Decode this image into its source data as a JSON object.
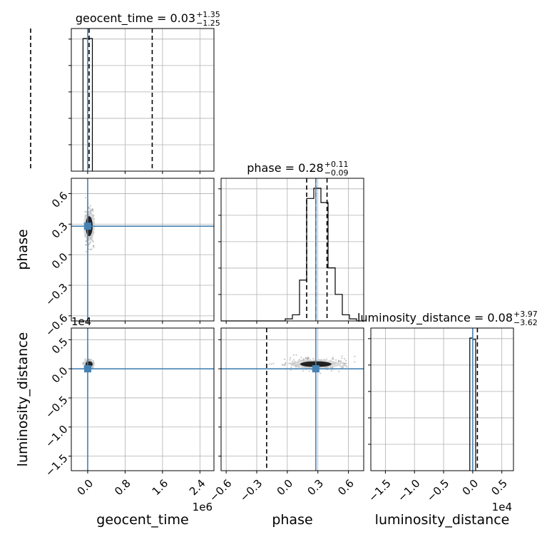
{
  "chart_data": {
    "type": "corner",
    "parameters": [
      {
        "name": "geocent_time",
        "axis_label": "geocent_time",
        "title": {
          "text": "geocent_time = 0.03",
          "plus": "+1.35",
          "minus": "−1.25"
        },
        "median": 0.03,
        "q_low": -1.22,
        "q_high": 1.38,
        "truth": 0.0,
        "range": [
          -0.35,
          2.7
        ],
        "range_units": "1e6",
        "ticks": [
          0.0,
          0.8,
          1.6,
          2.4
        ],
        "tick_labels": [
          "0.0",
          "0.8",
          "1.6",
          "2.4"
        ],
        "offset_text": "1e6",
        "hist": {
          "edges": [
            -0.1,
            0.0,
            0.1
          ],
          "counts": [
            100,
            100
          ]
        }
      },
      {
        "name": "phase",
        "axis_label": "phase",
        "title": {
          "text": "phase = 0.28",
          "plus": "+0.11",
          "minus": "−0.09"
        },
        "median": 0.28,
        "q_low": 0.19,
        "q_high": 0.39,
        "truth": 0.28,
        "range": [
          -0.65,
          0.75
        ],
        "ticks": [
          -0.6,
          -0.3,
          0.0,
          0.3,
          0.6
        ],
        "tick_labels": [
          "−0.6",
          "−0.3",
          "0.0",
          "0.3",
          "0.6"
        ],
        "hist": {
          "edges": [
            -0.65,
            -0.58,
            -0.51,
            -0.44,
            -0.37,
            -0.3,
            -0.23,
            -0.16,
            -0.09,
            -0.02,
            0.05,
            0.12,
            0.19,
            0.26,
            0.33,
            0.4,
            0.47,
            0.54,
            0.61,
            0.68,
            0.75
          ],
          "counts": [
            0,
            0,
            0,
            0,
            0,
            0,
            0,
            0,
            0,
            1,
            3,
            20,
            60,
            65,
            58,
            26,
            13,
            3,
            1,
            0
          ]
        }
      },
      {
        "name": "luminosity_distance",
        "axis_label": "luminosity_distance",
        "title": {
          "text": "luminosity_distance = 0.08",
          "plus": "+3.97",
          "minus": "−3.62"
        },
        "median": 0.08,
        "q_low": -3.54,
        "q_high": 4.05,
        "truth": 0.0,
        "range": [
          -1.75,
          0.7
        ],
        "range_units": "1e4",
        "ticks": [
          -1.5,
          -1.0,
          -0.5,
          0.0,
          0.5
        ],
        "tick_labels": [
          "−1.5",
          "−1.0",
          "−0.5",
          "0.0",
          "0.5"
        ],
        "offset_text": "1e4",
        "hist": {
          "edges": [
            -0.05,
            0.0,
            0.05
          ],
          "counts": [
            100,
            99
          ]
        }
      }
    ],
    "truth_color": "#4682b4",
    "grid": true
  }
}
